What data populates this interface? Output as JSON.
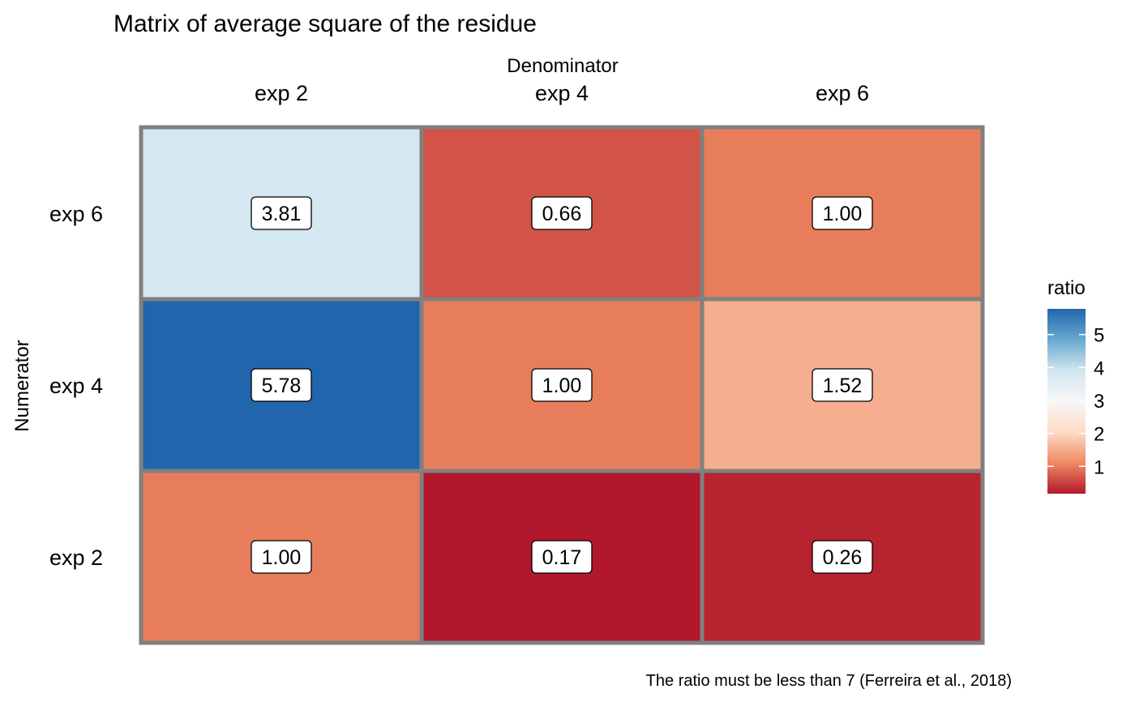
{
  "chart_data": {
    "type": "heatmap",
    "title": "Matrix of average square of the residue",
    "xlabel": "Denominator",
    "ylabel": "Numerator",
    "x_categories": [
      "exp 2",
      "exp 4",
      "exp 6"
    ],
    "y_categories": [
      "exp 6",
      "exp 4",
      "exp 2"
    ],
    "values": [
      [
        3.81,
        0.66,
        1.0
      ],
      [
        5.78,
        1.0,
        1.52
      ],
      [
        1.0,
        0.17,
        0.26
      ]
    ],
    "labels": [
      [
        "3.81",
        "0.66",
        "1.00"
      ],
      [
        "5.78",
        "1.00",
        "1.52"
      ],
      [
        "1.00",
        "0.17",
        "0.26"
      ]
    ],
    "legend": {
      "title": "ratio",
      "placement": "right",
      "range": [
        0.17,
        5.78
      ],
      "ticks": [
        1,
        2,
        3,
        4,
        5
      ],
      "tick_labels": [
        "1",
        "2",
        "3",
        "4",
        "5"
      ],
      "colors": [
        "#b2182b",
        "#ef8a62",
        "#fddbc7",
        "#f7f7f7",
        "#d1e5f0",
        "#67a9cf",
        "#2166ac"
      ]
    },
    "caption": "The ratio must be less than 7 (Ferreira et al., 2018)",
    "x_axis_position": "top",
    "grid": false
  },
  "colors": {
    "cell_border": "#808080",
    "label_box_fill": "#ffffff",
    "label_box_stroke": "#000000",
    "text": "#000000"
  }
}
